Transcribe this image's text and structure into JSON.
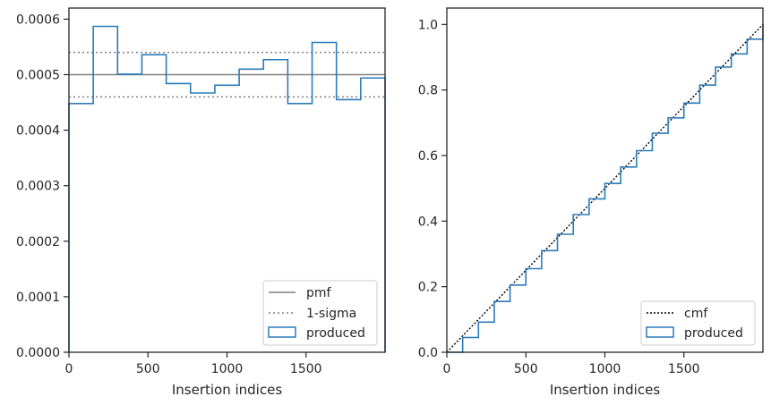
{
  "chart_data": [
    {
      "type": "histogram",
      "xlabel": "Insertion indices",
      "xlim": [
        0,
        2000
      ],
      "ylim": [
        0,
        0.00062
      ],
      "xticks": [
        0,
        500,
        1000,
        1500
      ],
      "yticks": [
        0,
        0.0001,
        0.0002,
        0.0003,
        0.0004,
        0.0005,
        0.0006
      ],
      "ytick_labels": [
        "0.0000",
        "0.0001",
        "0.0002",
        "0.0003",
        "0.0004",
        "0.0005",
        "0.0006"
      ],
      "xtick_labels": [
        "0",
        "500",
        "1000",
        "1500"
      ],
      "bin_edges": [
        0,
        153.8,
        307.7,
        461.5,
        615.4,
        769.2,
        923.1,
        1076.9,
        1230.8,
        1384.6,
        1538.5,
        1692.3,
        1846.2,
        2000
      ],
      "bin_values": [
        0.000448,
        0.000587,
        0.000501,
        0.000536,
        0.000484,
        0.000467,
        0.000481,
        0.00051,
        0.000527,
        0.000448,
        0.000558,
        0.000455,
        0.000494
      ],
      "pmf": 0.0005,
      "sigma_band": [
        0.00046,
        0.00054
      ],
      "legend": [
        "pmf",
        "1-sigma",
        "produced"
      ],
      "legend_loc": "lower right",
      "colors": {
        "produced": "#2b7bb9",
        "pmf": "#808080",
        "sigma": "#808080"
      }
    },
    {
      "type": "line",
      "xlabel": "Insertion indices",
      "xlim": [
        0,
        2000
      ],
      "ylim": [
        0,
        1.05
      ],
      "xticks": [
        0,
        500,
        1000,
        1500
      ],
      "yticks": [
        0,
        0.2,
        0.4,
        0.6,
        0.8,
        1.0
      ],
      "ytick_labels": [
        "0.0",
        "0.2",
        "0.4",
        "0.6",
        "0.8",
        "1.0"
      ],
      "xtick_labels": [
        "0",
        "500",
        "1000",
        "1500"
      ],
      "produced_x": [
        0,
        100,
        200,
        300,
        400,
        500,
        600,
        700,
        800,
        900,
        1000,
        1100,
        1200,
        1300,
        1400,
        1500,
        1600,
        1700,
        1800,
        1900,
        2000
      ],
      "produced_y": [
        0,
        0.045,
        0.092,
        0.155,
        0.205,
        0.255,
        0.31,
        0.36,
        0.42,
        0.468,
        0.515,
        0.565,
        0.615,
        0.668,
        0.715,
        0.76,
        0.815,
        0.87,
        0.91,
        0.955,
        1.0
      ],
      "cmf": [
        [
          0,
          0
        ],
        [
          2000,
          1.0
        ]
      ],
      "legend": [
        "cmf",
        "produced"
      ],
      "legend_loc": "lower right",
      "colors": {
        "produced": "#2b7bb9",
        "cmf": "#000000"
      }
    }
  ]
}
